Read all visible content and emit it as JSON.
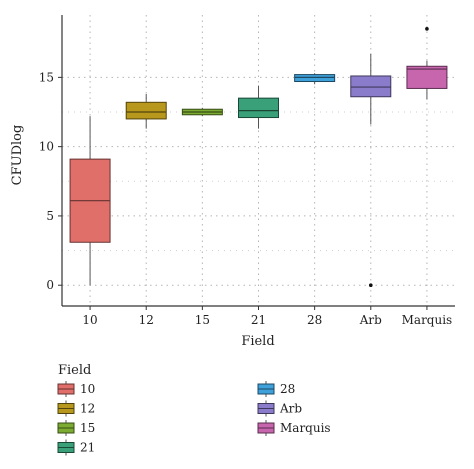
{
  "chart_data": {
    "type": "boxplot",
    "xlabel": "Field",
    "ylabel": "CFUDlog",
    "ylim": [
      -1.5,
      19.5
    ],
    "yticks": [
      0,
      5,
      10,
      15
    ],
    "grid": true,
    "legend": {
      "title": "Field",
      "placement": "bottom-left",
      "entries": [
        "10",
        "12",
        "15",
        "21",
        "28",
        "Arb",
        "Marquis"
      ]
    },
    "categories": [
      "10",
      "12",
      "15",
      "21",
      "28",
      "Arb",
      "Marquis"
    ],
    "series": [
      {
        "name": "10",
        "color": "#e06f6a",
        "whisker_low": 0.0,
        "q1": 3.1,
        "median": 6.1,
        "q3": 9.1,
        "whisker_high": 12.2,
        "outliers": []
      },
      {
        "name": "12",
        "color": "#b7971c",
        "whisker_low": 11.3,
        "q1": 12.0,
        "median": 12.5,
        "q3": 13.2,
        "whisker_high": 13.8,
        "outliers": []
      },
      {
        "name": "15",
        "color": "#7bab30",
        "whisker_low": 12.2,
        "q1": 12.3,
        "median": 12.5,
        "q3": 12.7,
        "whisker_high": 12.8,
        "outliers": []
      },
      {
        "name": "21",
        "color": "#3aa07a",
        "whisker_low": 11.3,
        "q1": 12.1,
        "median": 12.6,
        "q3": 13.5,
        "whisker_high": 14.4,
        "outliers": []
      },
      {
        "name": "28",
        "color": "#3ea1da",
        "whisker_low": 14.5,
        "q1": 14.7,
        "median": 15.0,
        "q3": 15.2,
        "whisker_high": 15.3,
        "outliers": []
      },
      {
        "name": "Arb",
        "color": "#8b7ccb",
        "whisker_low": 11.6,
        "q1": 13.6,
        "median": 14.3,
        "q3": 15.1,
        "whisker_high": 16.7,
        "outliers": [
          0.0
        ]
      },
      {
        "name": "Marquis",
        "color": "#c765ad",
        "whisker_low": 13.4,
        "q1": 14.2,
        "median": 15.6,
        "q3": 15.8,
        "whisker_high": 16.2,
        "outliers": [
          18.5
        ]
      }
    ]
  }
}
